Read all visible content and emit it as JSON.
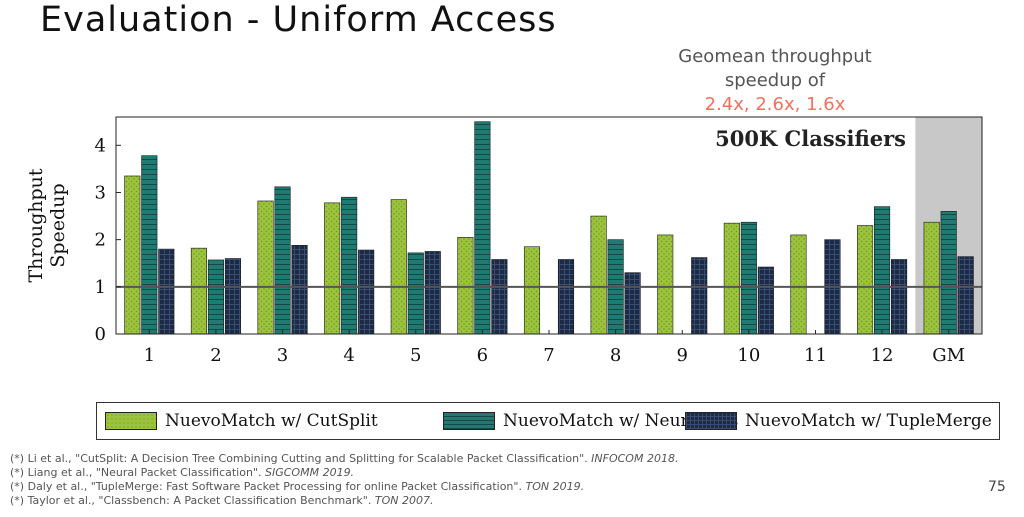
{
  "slide": {
    "title": "Evaluation - Uniform Access",
    "callout_line1": "Geomean throughput",
    "callout_line2": "speedup of",
    "callout_highlight": "2.4x, 2.6x, 1.6x",
    "page_number": "75"
  },
  "colors": {
    "cutsplit": "#9bc33c",
    "neurocuts": "#1f7a72",
    "tuplemerge": "#1c2b45",
    "highlight": "#f2705e",
    "gm_background": "#c8c8c8"
  },
  "chart_data": {
    "type": "bar",
    "annotation": "500K Classifiers",
    "ylabel": "Throughput Speedup",
    "xlabel": "",
    "ylim": [
      0,
      4.6
    ],
    "yticks": [
      0,
      1,
      2,
      3,
      4
    ],
    "reference_line": 1,
    "categories": [
      "1",
      "2",
      "3",
      "4",
      "5",
      "6",
      "7",
      "8",
      "9",
      "10",
      "11",
      "12",
      "GM"
    ],
    "highlighted_category": "GM",
    "series": [
      {
        "name": "NuevoMatch w/ CutSplit",
        "values": [
          3.35,
          1.82,
          2.82,
          2.78,
          2.85,
          2.05,
          1.85,
          2.5,
          2.1,
          2.35,
          2.1,
          2.3,
          2.37
        ]
      },
      {
        "name": "NuevoMatch w/ NeuroCuts",
        "values": [
          3.78,
          1.57,
          3.12,
          2.9,
          1.72,
          4.5,
          null,
          2.0,
          null,
          2.37,
          null,
          2.7,
          2.6
        ]
      },
      {
        "name": "NuevoMatch w/ TupleMerge",
        "values": [
          1.8,
          1.6,
          1.88,
          1.78,
          1.75,
          1.58,
          1.58,
          1.3,
          1.62,
          1.42,
          2.0,
          1.58,
          1.64
        ]
      }
    ]
  },
  "footnotes": [
    {
      "marker": "(*)",
      "text": "Li et al., \"CutSplit: A Decision Tree Combining Cutting and Splitting for Scalable Packet Classification\".",
      "venue": "INFOCOM 2018."
    },
    {
      "marker": "(*)",
      "text": "Liang et al., \"Neural Packet Classification\".",
      "venue": "SIGCOMM 2019."
    },
    {
      "marker": "(*)",
      "text": "Daly et al., \"TupleMerge: Fast Software Packet Processing for online Packet Classification\".",
      "venue": "TON 2019."
    },
    {
      "marker": "(*)",
      "text": "Taylor et al., \"Classbench: A Packet Classification Benchmark\".",
      "venue": "TON 2007."
    }
  ]
}
